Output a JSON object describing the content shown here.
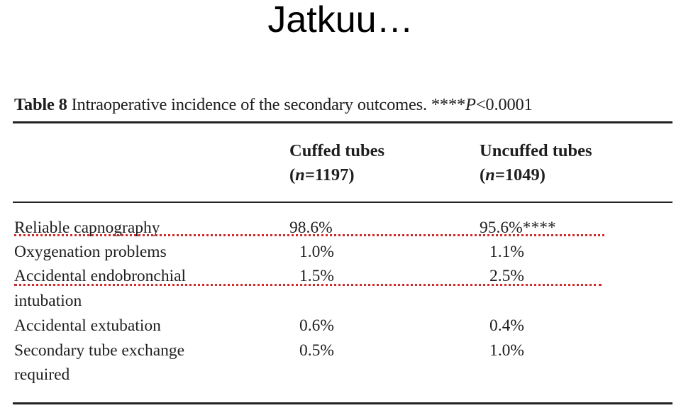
{
  "slide": {
    "title": "Jatkuu…"
  },
  "table": {
    "caption_label": "Table 8",
    "caption_text": "Intraoperative incidence of the secondary outcomes. ****",
    "caption_p": "P",
    "caption_tail": "<0.0001",
    "columns": [
      {
        "name": "Cuffed tubes",
        "n_open": "(",
        "n_var": "n",
        "n_rest": "=1197)"
      },
      {
        "name": "Uncuffed tubes",
        "n_open": "(",
        "n_var": "n",
        "n_rest": "=1049)"
      }
    ],
    "rows": [
      {
        "label": [
          "Reliable capnography"
        ],
        "cuffed": "98.6%",
        "uncuffed": "95.6%****"
      },
      {
        "label": [
          "Oxygenation problems"
        ],
        "cuffed": "1.0%",
        "uncuffed": "1.1%"
      },
      {
        "label": [
          "Accidental endobronchial",
          "intubation"
        ],
        "cuffed": "1.5%",
        "uncuffed": "2.5%"
      },
      {
        "label": [
          "Accidental extubation"
        ],
        "cuffed": "0.6%",
        "uncuffed": "0.4%"
      },
      {
        "label": [
          "Secondary tube exchange",
          "required"
        ],
        "cuffed": "0.5%",
        "uncuffed": "1.0%"
      }
    ]
  },
  "colors": {
    "highlight_underline": "#d22a2a",
    "text": "#1e1e1e"
  }
}
